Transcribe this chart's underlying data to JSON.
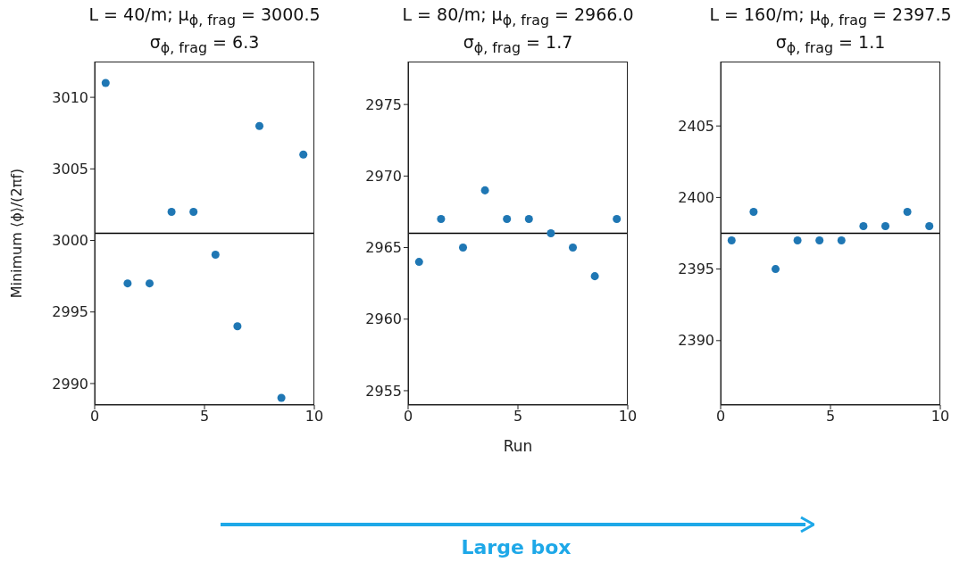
{
  "chart_data": [
    {
      "type": "scatter",
      "title": "L = 40/m; μ$_{ϕ, frag}$ = 3000.5",
      "subtitle": "σ$_{ϕ, frag}$ = 6.3",
      "ylabel": "Minimum ⟨ϕ⟩/(2πf)",
      "marker": "circle",
      "x": [
        0.5,
        1.5,
        2.5,
        3.5,
        4.5,
        5.5,
        6.5,
        7.5,
        8.5,
        9.5
      ],
      "series": [
        {
          "color": "#1f77b4",
          "values": [
            3011,
            2997,
            2997,
            3002,
            3002,
            2999,
            2994,
            3008,
            2989,
            3006
          ]
        }
      ],
      "xlim": [
        0,
        10
      ],
      "xticks": [
        0,
        5,
        10
      ],
      "ylim": [
        2988.5,
        3012.5
      ],
      "yticks": [
        2990,
        2995,
        3000,
        3005,
        3010
      ],
      "ref_lines": [
        {
          "axis": "y",
          "value": 3000.5,
          "color": "#000000"
        }
      ]
    },
    {
      "type": "scatter",
      "title": "L = 80/m; μ$_{ϕ, frag}$ = 2966.0",
      "subtitle": "σ$_{ϕ, frag}$ = 1.7",
      "xlabel": "Run",
      "marker": "circle",
      "x": [
        0.5,
        1.5,
        2.5,
        3.5,
        4.5,
        5.5,
        6.5,
        7.5,
        8.5,
        9.5
      ],
      "series": [
        {
          "color": "#1f77b4",
          "values": [
            2964,
            2967,
            2965,
            2969,
            2967,
            2967,
            2966,
            2965,
            2963,
            2967
          ]
        }
      ],
      "xlim": [
        0,
        10
      ],
      "xticks": [
        0,
        5,
        10
      ],
      "ylim": [
        2954,
        2978
      ],
      "yticks": [
        2955,
        2960,
        2965,
        2970,
        2975
      ],
      "ref_lines": [
        {
          "axis": "y",
          "value": 2966,
          "color": "#000000"
        }
      ],
      "annotations": [
        "Large box"
      ]
    },
    {
      "type": "scatter",
      "title": "L = 160/m; μ$_{ϕ, frag}$ = 2397.5",
      "subtitle": "σ$_{ϕ, frag}$ = 1.1",
      "marker": "circle",
      "x": [
        0.5,
        1.5,
        2.5,
        3.5,
        4.5,
        5.5,
        6.5,
        7.5,
        8.5,
        9.5
      ],
      "series": [
        {
          "color": "#1f77b4",
          "values": [
            2397,
            2399,
            2395,
            2397,
            2397,
            2397,
            2398,
            2398,
            2399,
            2398
          ]
        }
      ],
      "xlim": [
        0,
        10
      ],
      "xticks": [
        0,
        5,
        10
      ],
      "ylim": [
        2385.5,
        2409.5
      ],
      "yticks": [
        2390,
        2395,
        2400,
        2405
      ],
      "ref_lines": [
        {
          "axis": "y",
          "value": 2397.5,
          "color": "#000000"
        }
      ]
    }
  ]
}
